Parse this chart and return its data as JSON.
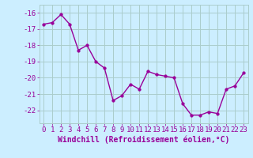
{
  "x": [
    0,
    1,
    2,
    3,
    4,
    5,
    6,
    7,
    8,
    9,
    10,
    11,
    12,
    13,
    14,
    15,
    16,
    17,
    18,
    19,
    20,
    21,
    22,
    23
  ],
  "y": [
    -16.7,
    -16.6,
    -16.1,
    -16.7,
    -18.3,
    -18.0,
    -19.0,
    -19.4,
    -21.4,
    -21.1,
    -20.4,
    -20.7,
    -19.6,
    -19.8,
    -19.9,
    -20.0,
    -21.6,
    -22.3,
    -22.3,
    -22.1,
    -22.2,
    -20.7,
    -20.5,
    -19.7
  ],
  "line_color": "#990099",
  "marker": "o",
  "marker_size": 2.5,
  "line_width": 1.0,
  "bg_color": "#cceeff",
  "grid_color": "#aacccc",
  "xlabel": "Windchill (Refroidissement éolien,°C)",
  "xlabel_color": "#990099",
  "tick_color": "#990099",
  "ylim": [
    -22.8,
    -15.5
  ],
  "xlim": [
    -0.5,
    23.5
  ],
  "yticks": [
    -16,
    -17,
    -18,
    -19,
    -20,
    -21,
    -22
  ],
  "xticks": [
    0,
    1,
    2,
    3,
    4,
    5,
    6,
    7,
    8,
    9,
    10,
    11,
    12,
    13,
    14,
    15,
    16,
    17,
    18,
    19,
    20,
    21,
    22,
    23
  ],
  "tick_fontsize": 6.5,
  "xlabel_fontsize": 7.0
}
